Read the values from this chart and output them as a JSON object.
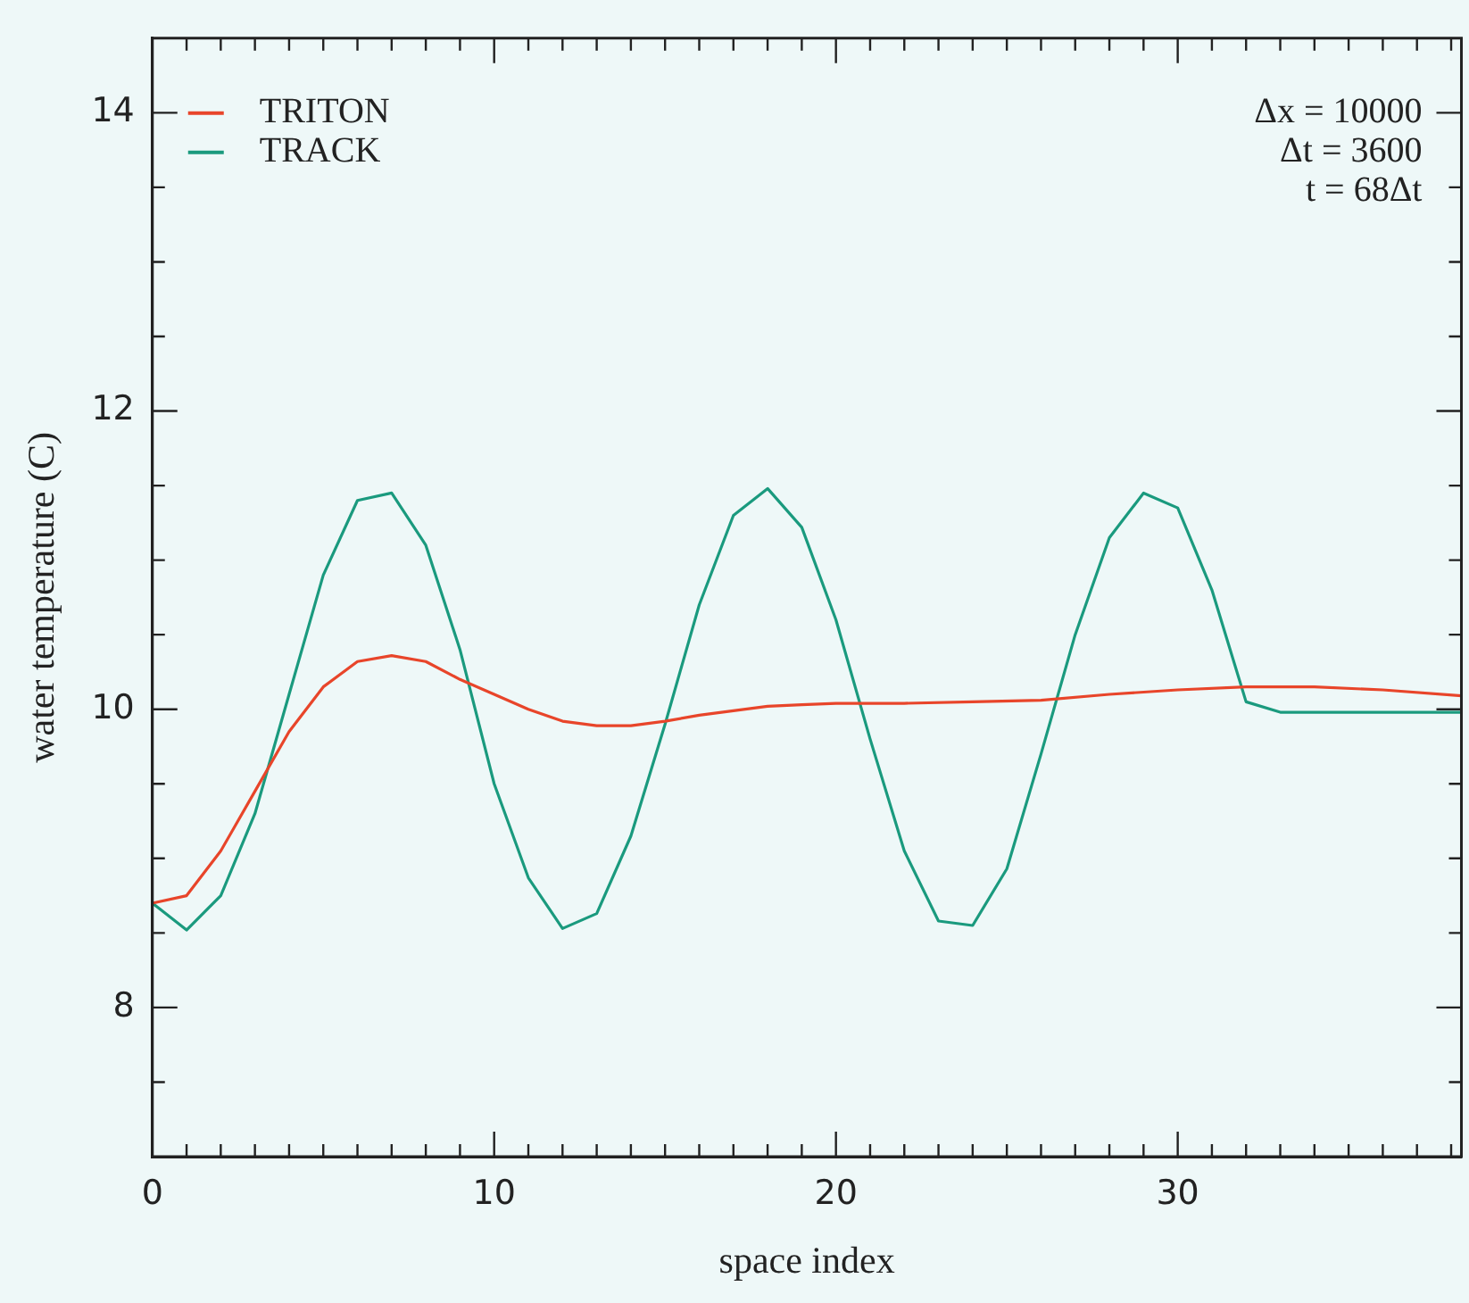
{
  "chart_data": {
    "type": "line",
    "xlabel": "space index",
    "ylabel": "water temperature (C)",
    "annotations": [
      "Δx = 10000",
      "Δt = 3600",
      "t = 68Δt"
    ],
    "legend": "top left",
    "grid": false,
    "marker": "none",
    "line_style": "solid",
    "xlim": [
      0,
      38.3
    ],
    "xticks": [
      0,
      {
        "value": 1,
        "label": null
      },
      {
        "value": 2,
        "label": null
      },
      {
        "value": 3,
        "label": null
      },
      {
        "value": 4,
        "label": null
      },
      {
        "value": 5,
        "label": null
      },
      {
        "value": 6,
        "label": null
      },
      {
        "value": 7,
        "label": null
      },
      {
        "value": 8,
        "label": null
      },
      {
        "value": 9,
        "label": null
      },
      10,
      {
        "value": 11,
        "label": null
      },
      {
        "value": 12,
        "label": null
      },
      {
        "value": 13,
        "label": null
      },
      {
        "value": 14,
        "label": null
      },
      {
        "value": 15,
        "label": null
      },
      {
        "value": 16,
        "label": null
      },
      {
        "value": 17,
        "label": null
      },
      {
        "value": 18,
        "label": null
      },
      {
        "value": 19,
        "label": null
      },
      20,
      {
        "value": 21,
        "label": null
      },
      {
        "value": 22,
        "label": null
      },
      {
        "value": 23,
        "label": null
      },
      {
        "value": 24,
        "label": null
      },
      {
        "value": 25,
        "label": null
      },
      {
        "value": 26,
        "label": null
      },
      {
        "value": 27,
        "label": null
      },
      {
        "value": 28,
        "label": null
      },
      {
        "value": 29,
        "label": null
      },
      30,
      {
        "value": 31,
        "label": null
      },
      {
        "value": 32,
        "label": null
      },
      {
        "value": 33,
        "label": null
      },
      {
        "value": 34,
        "label": null
      },
      {
        "value": 35,
        "label": null
      },
      {
        "value": 36,
        "label": null
      },
      {
        "value": 37,
        "label": null
      },
      {
        "value": 38,
        "label": null
      }
    ],
    "ylim": [
      7,
      14.5
    ],
    "yticks": [
      {
        "value": 7.5,
        "label": null
      },
      8,
      {
        "value": 8.5,
        "label": null
      },
      {
        "value": 9,
        "label": null
      },
      {
        "value": 9.5,
        "label": null
      },
      10,
      {
        "value": 10.5,
        "label": null
      },
      {
        "value": 11,
        "label": null
      },
      {
        "value": 11.5,
        "label": null
      },
      12,
      {
        "value": 12.5,
        "label": null
      },
      {
        "value": 13,
        "label": null
      },
      {
        "value": 13.5,
        "label": null
      },
      14
    ],
    "series": [
      {
        "name": "TRITON",
        "color": "#e8452a",
        "x": [
          0,
          1,
          2,
          3,
          4,
          5,
          6,
          7,
          8,
          9,
          10,
          11,
          12,
          13,
          14,
          15,
          16,
          17,
          18,
          19,
          20,
          22,
          24,
          26,
          28,
          30,
          32,
          34,
          36,
          38.3
        ],
        "values": [
          8.7,
          8.75,
          9.05,
          9.45,
          9.85,
          10.15,
          10.32,
          10.36,
          10.32,
          10.2,
          10.1,
          10.0,
          9.92,
          9.89,
          9.89,
          9.92,
          9.96,
          9.99,
          10.02,
          10.03,
          10.04,
          10.04,
          10.05,
          10.06,
          10.1,
          10.13,
          10.15,
          10.15,
          10.13,
          10.09
        ]
      },
      {
        "name": "TRACK",
        "color": "#1a9a7e",
        "x": [
          0,
          1,
          2,
          3,
          4,
          5,
          6,
          7,
          8,
          9,
          10,
          11,
          12,
          13,
          14,
          15,
          16,
          17,
          18,
          19,
          20,
          21,
          22,
          23,
          24,
          25,
          26,
          27,
          28,
          29,
          30,
          31,
          32,
          33,
          38.3
        ],
        "values": [
          8.7,
          8.52,
          8.75,
          9.3,
          10.1,
          10.9,
          11.4,
          11.45,
          11.1,
          10.4,
          9.5,
          8.87,
          8.53,
          8.63,
          9.15,
          9.9,
          10.7,
          11.3,
          11.48,
          11.22,
          10.6,
          9.8,
          9.05,
          8.58,
          8.55,
          8.93,
          9.7,
          10.5,
          11.15,
          11.45,
          11.35,
          10.8,
          10.05,
          9.98,
          9.98
        ]
      }
    ]
  }
}
